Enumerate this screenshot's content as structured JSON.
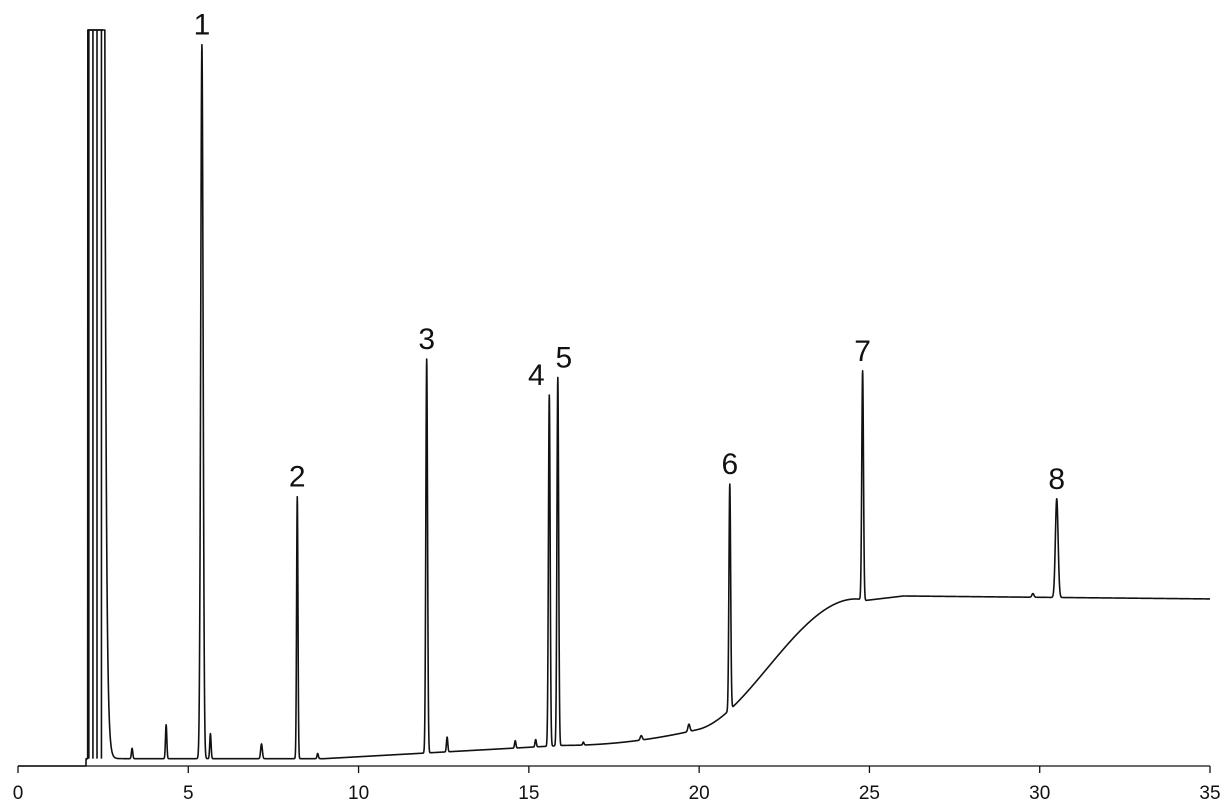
{
  "chart_data": {
    "type": "line",
    "title": "",
    "xlabel": "",
    "ylabel": "",
    "xlim": [
      0,
      35
    ],
    "ylim": [
      0,
      100
    ],
    "grid": false,
    "x_ticks": [
      0,
      5,
      10,
      15,
      20,
      25,
      30,
      35
    ],
    "x_tick_labels": [
      "0",
      "5",
      "10",
      "15",
      "20",
      "25",
      "30",
      "35"
    ],
    "line_color": "#111111",
    "peaks": [
      {
        "label": "1",
        "x": 5.4,
        "height": 98.0
      },
      {
        "label": "2",
        "x": 8.2,
        "height": 36.6
      },
      {
        "label": "3",
        "x": 12.0,
        "height": 55.3
      },
      {
        "label": "4",
        "x": 15.6,
        "height": 50.4
      },
      {
        "label": "5",
        "x": 15.85,
        "height": 52.8
      },
      {
        "label": "6",
        "x": 20.9,
        "height": 38.3
      },
      {
        "label": "7",
        "x": 24.8,
        "height": 53.7
      },
      {
        "label": "8",
        "x": 30.5,
        "height": 36.3
      }
    ]
  }
}
